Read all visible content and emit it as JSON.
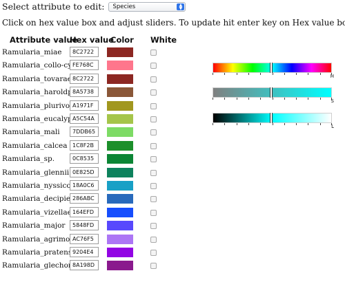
{
  "top": {
    "select_label": "Select attribute to edit:",
    "select_value": "Species"
  },
  "instructions": "Click on hex value box and adjust sliders. To update hit enter key on Hex value box.",
  "table": {
    "headers": {
      "attribute": "Attribute value",
      "hex": "Hex value",
      "color": "Color",
      "white": "White"
    },
    "rows": [
      {
        "name": "Ramularia_miae",
        "hex": "8C2722",
        "color": "#8C2722"
      },
      {
        "name": "Ramularia_collo-cygni",
        "hex": "FE768C",
        "color": "#FE768C"
      },
      {
        "name": "Ramularia_tovarae",
        "hex": "8C2722",
        "color": "#8C2722"
      },
      {
        "name": "Ramularia_haroldporteri",
        "hex": "8A5738",
        "color": "#8A5738"
      },
      {
        "name": "Ramularia_plurivora",
        "hex": "A1971F",
        "color": "#A1971F"
      },
      {
        "name": "Ramularia_eucalypti",
        "hex": "A5C54A",
        "color": "#A5C54A"
      },
      {
        "name": "Ramularia_mali",
        "hex": "7DDB65",
        "color": "#7DDB65"
      },
      {
        "name": "Ramularia_calcea",
        "hex": "1C8F2B",
        "color": "#1C8F2B"
      },
      {
        "name": "Ramularia_sp.",
        "hex": "0C8535",
        "color": "#0C8535"
      },
      {
        "name": "Ramularia_glennii",
        "hex": "0E825D",
        "color": "#0E825D"
      },
      {
        "name": "Ramularia_nyssicola",
        "hex": "18A0C6",
        "color": "#18A0C6"
      },
      {
        "name": "Ramularia_decipiens",
        "hex": "286ABC",
        "color": "#286ABC"
      },
      {
        "name": "Ramularia_vizellae",
        "hex": "164EFD",
        "color": "#164EFD"
      },
      {
        "name": "Ramularia_major",
        "hex": "5848FD",
        "color": "#5848FD"
      },
      {
        "name": "Ramularia_agrimoniae",
        "hex": "AC76F5",
        "color": "#AC76F5"
      },
      {
        "name": "Ramularia_pratensis",
        "hex": "9204E4",
        "color": "#9204E4"
      },
      {
        "name": "Ramularia_glechomatis",
        "hex": "8A198D",
        "color": "#8A198D"
      }
    ]
  },
  "sliders": {
    "hue": {
      "letter": "H",
      "value": 0.49
    },
    "saturation": {
      "letter": "S",
      "value": 0.49
    },
    "lightness": {
      "letter": "L",
      "value": 0.49
    }
  }
}
